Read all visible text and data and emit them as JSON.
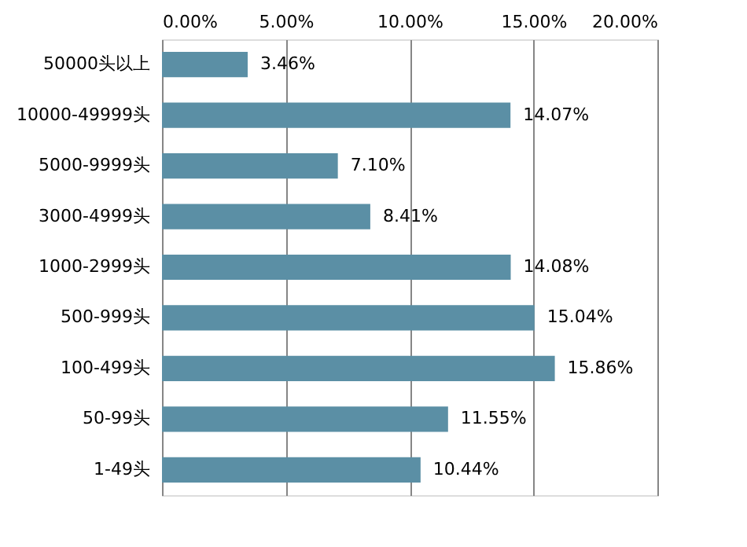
{
  "chart_data": {
    "type": "bar",
    "orientation": "horizontal",
    "categories": [
      "50000头以上",
      "10000-49999头",
      "5000-9999头",
      "3000-4999头",
      "1000-2999头",
      "500-999头",
      "100-499头",
      "50-99头",
      "1-49头"
    ],
    "values": [
      3.46,
      14.07,
      7.1,
      8.41,
      14.08,
      15.04,
      15.86,
      11.55,
      10.44
    ],
    "value_labels": [
      "3.46%",
      "14.07%",
      "7.10%",
      "8.41%",
      "14.08%",
      "15.04%",
      "15.86%",
      "11.55%",
      "10.44%"
    ],
    "color": "#5b8fa5",
    "xlim": [
      0,
      20
    ],
    "xticks": [
      {
        "value": 0,
        "label": "0.00%"
      },
      {
        "value": 5,
        "label": "5.00%"
      },
      {
        "value": 10,
        "label": "10.00%"
      },
      {
        "value": 15,
        "label": "15.00%"
      },
      {
        "value": 20,
        "label": "20.00%"
      }
    ],
    "grid": "x"
  }
}
